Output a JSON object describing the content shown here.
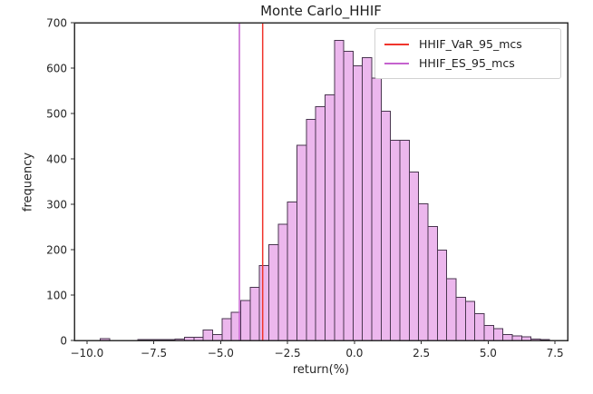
{
  "chart_data": {
    "type": "bar",
    "subtype": "histogram",
    "title": "Monte Carlo_HHIF",
    "xlabel": "return(%)",
    "ylabel": "frequency",
    "xlim": [
      -10.47,
      7.97
    ],
    "ylim": [
      0,
      700
    ],
    "grid": false,
    "legend_position": "upper right",
    "xticks": {
      "values": [
        -10.0,
        -7.5,
        -5.0,
        -2.5,
        0.0,
        2.5,
        5.0,
        7.5
      ],
      "labels": [
        "−10.0",
        "−7.5",
        "−5.0",
        "−2.5",
        "0.0",
        "2.5",
        "5.0",
        "7.5"
      ]
    },
    "yticks": {
      "values": [
        0,
        100,
        200,
        300,
        400,
        500,
        600,
        700
      ],
      "labels": [
        "0",
        "100",
        "200",
        "300",
        "400",
        "500",
        "600",
        "700"
      ]
    },
    "bins": {
      "start": -9.5,
      "width": 0.35,
      "count": 48
    },
    "frequencies": [
      4,
      0,
      0,
      0,
      2,
      2,
      2,
      2,
      3,
      7,
      7,
      23,
      13,
      48,
      62,
      88,
      117,
      165,
      211,
      256,
      305,
      430,
      487,
      515,
      541,
      661,
      637,
      605,
      623,
      578,
      505,
      441,
      441,
      371,
      301,
      251,
      199,
      136,
      95,
      86,
      59,
      33,
      26,
      13,
      10,
      8,
      3,
      2
    ],
    "bar_fill": "#ecb7ed",
    "bar_edge": "#4a3650",
    "vlines": [
      {
        "label": "HHIF_VaR_95_mcs",
        "x": -3.43,
        "color": "#f0352c"
      },
      {
        "label": "HHIF_ES_95_mcs",
        "x": -4.3,
        "color": "#c562ce"
      }
    ],
    "colors": {
      "spine": "#2e2e2e",
      "tick_label": "#262626"
    }
  }
}
